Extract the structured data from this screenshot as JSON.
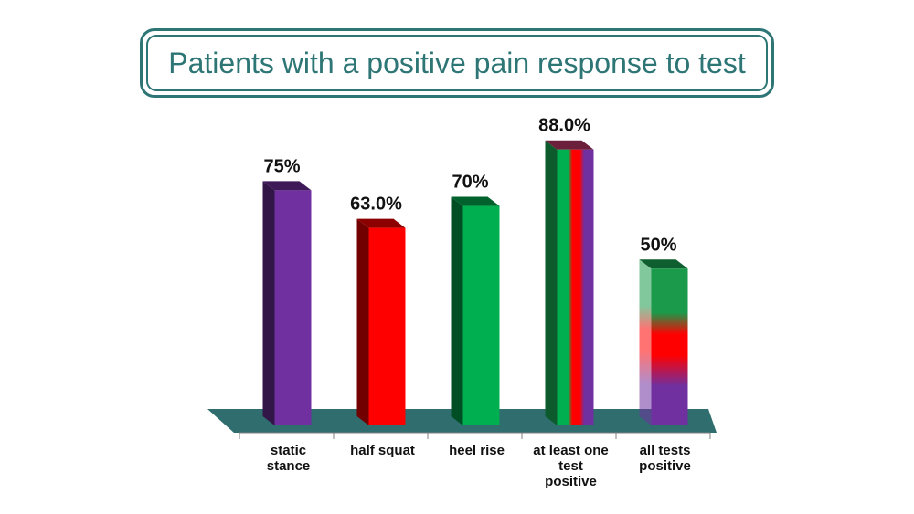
{
  "chart_data": {
    "type": "bar",
    "title": "Patients with a positive pain response to test",
    "categories": [
      "static\nstance",
      "half squat",
      "heel rise",
      "at least one\ntest\npositive",
      "all tests\npositive"
    ],
    "values": [
      75,
      63,
      70,
      88,
      50
    ],
    "value_labels": [
      "75%",
      "63.0%",
      "70%",
      "88.0%",
      "50%"
    ],
    "ylim": [
      0,
      100
    ],
    "grid": false,
    "legend": "none",
    "bar_styles": [
      "purple",
      "red",
      "green",
      "green-red-purple vertical stripes",
      "green-red-purple vertical gradient"
    ],
    "colors": {
      "title": "#2e7575",
      "purple": "#7030a0",
      "red": "#ff0000",
      "green": "#00b050",
      "floor": "#2f6d6f"
    }
  }
}
